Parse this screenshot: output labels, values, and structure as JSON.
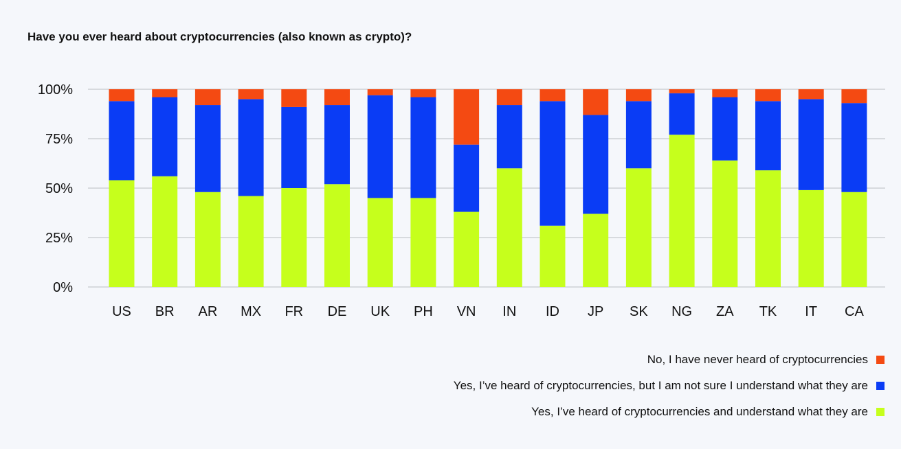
{
  "chart_data": {
    "type": "bar",
    "stacked": true,
    "title": "Have you ever heard about cryptocurrencies (also known as crypto)?",
    "xlabel": "",
    "ylabel": "",
    "ylim": [
      0,
      100
    ],
    "y_ticks": [
      0,
      25,
      50,
      75,
      100
    ],
    "y_tick_labels": [
      "0%",
      "25%",
      "50%",
      "75%",
      "100%"
    ],
    "grid": true,
    "legend_position": "bottom-right",
    "categories": [
      "US",
      "BR",
      "AR",
      "MX",
      "FR",
      "DE",
      "UK",
      "PH",
      "VN",
      "IN",
      "ID",
      "JP",
      "SK",
      "NG",
      "ZA",
      "TK",
      "IT",
      "CA"
    ],
    "series": [
      {
        "name": "Yes, I’ve heard of cryptocurrencies and understand what they are",
        "color": "#c6ff1c",
        "values": [
          54,
          56,
          48,
          46,
          50,
          52,
          45,
          45,
          38,
          60,
          31,
          37,
          60,
          77,
          64,
          59,
          49,
          48
        ]
      },
      {
        "name": "Yes, I’ve heard of cryptocurrencies, but I am not sure I understand what they are",
        "color": "#0a3cf5",
        "values": [
          40,
          40,
          44,
          49,
          41,
          40,
          52,
          51,
          34,
          32,
          63,
          50,
          34,
          21,
          32,
          35,
          46,
          45
        ]
      },
      {
        "name": "No, I have never heard of cryptocurrencies",
        "color": "#f44a12",
        "values": [
          6,
          4,
          8,
          5,
          9,
          8,
          3,
          4,
          28,
          8,
          6,
          13,
          6,
          2,
          4,
          6,
          5,
          7
        ]
      }
    ],
    "legend_order": [
      2,
      1,
      0
    ]
  },
  "colors": {
    "background": "#f5f7fb",
    "grid": "#b9bcc2",
    "text": "#111111"
  }
}
